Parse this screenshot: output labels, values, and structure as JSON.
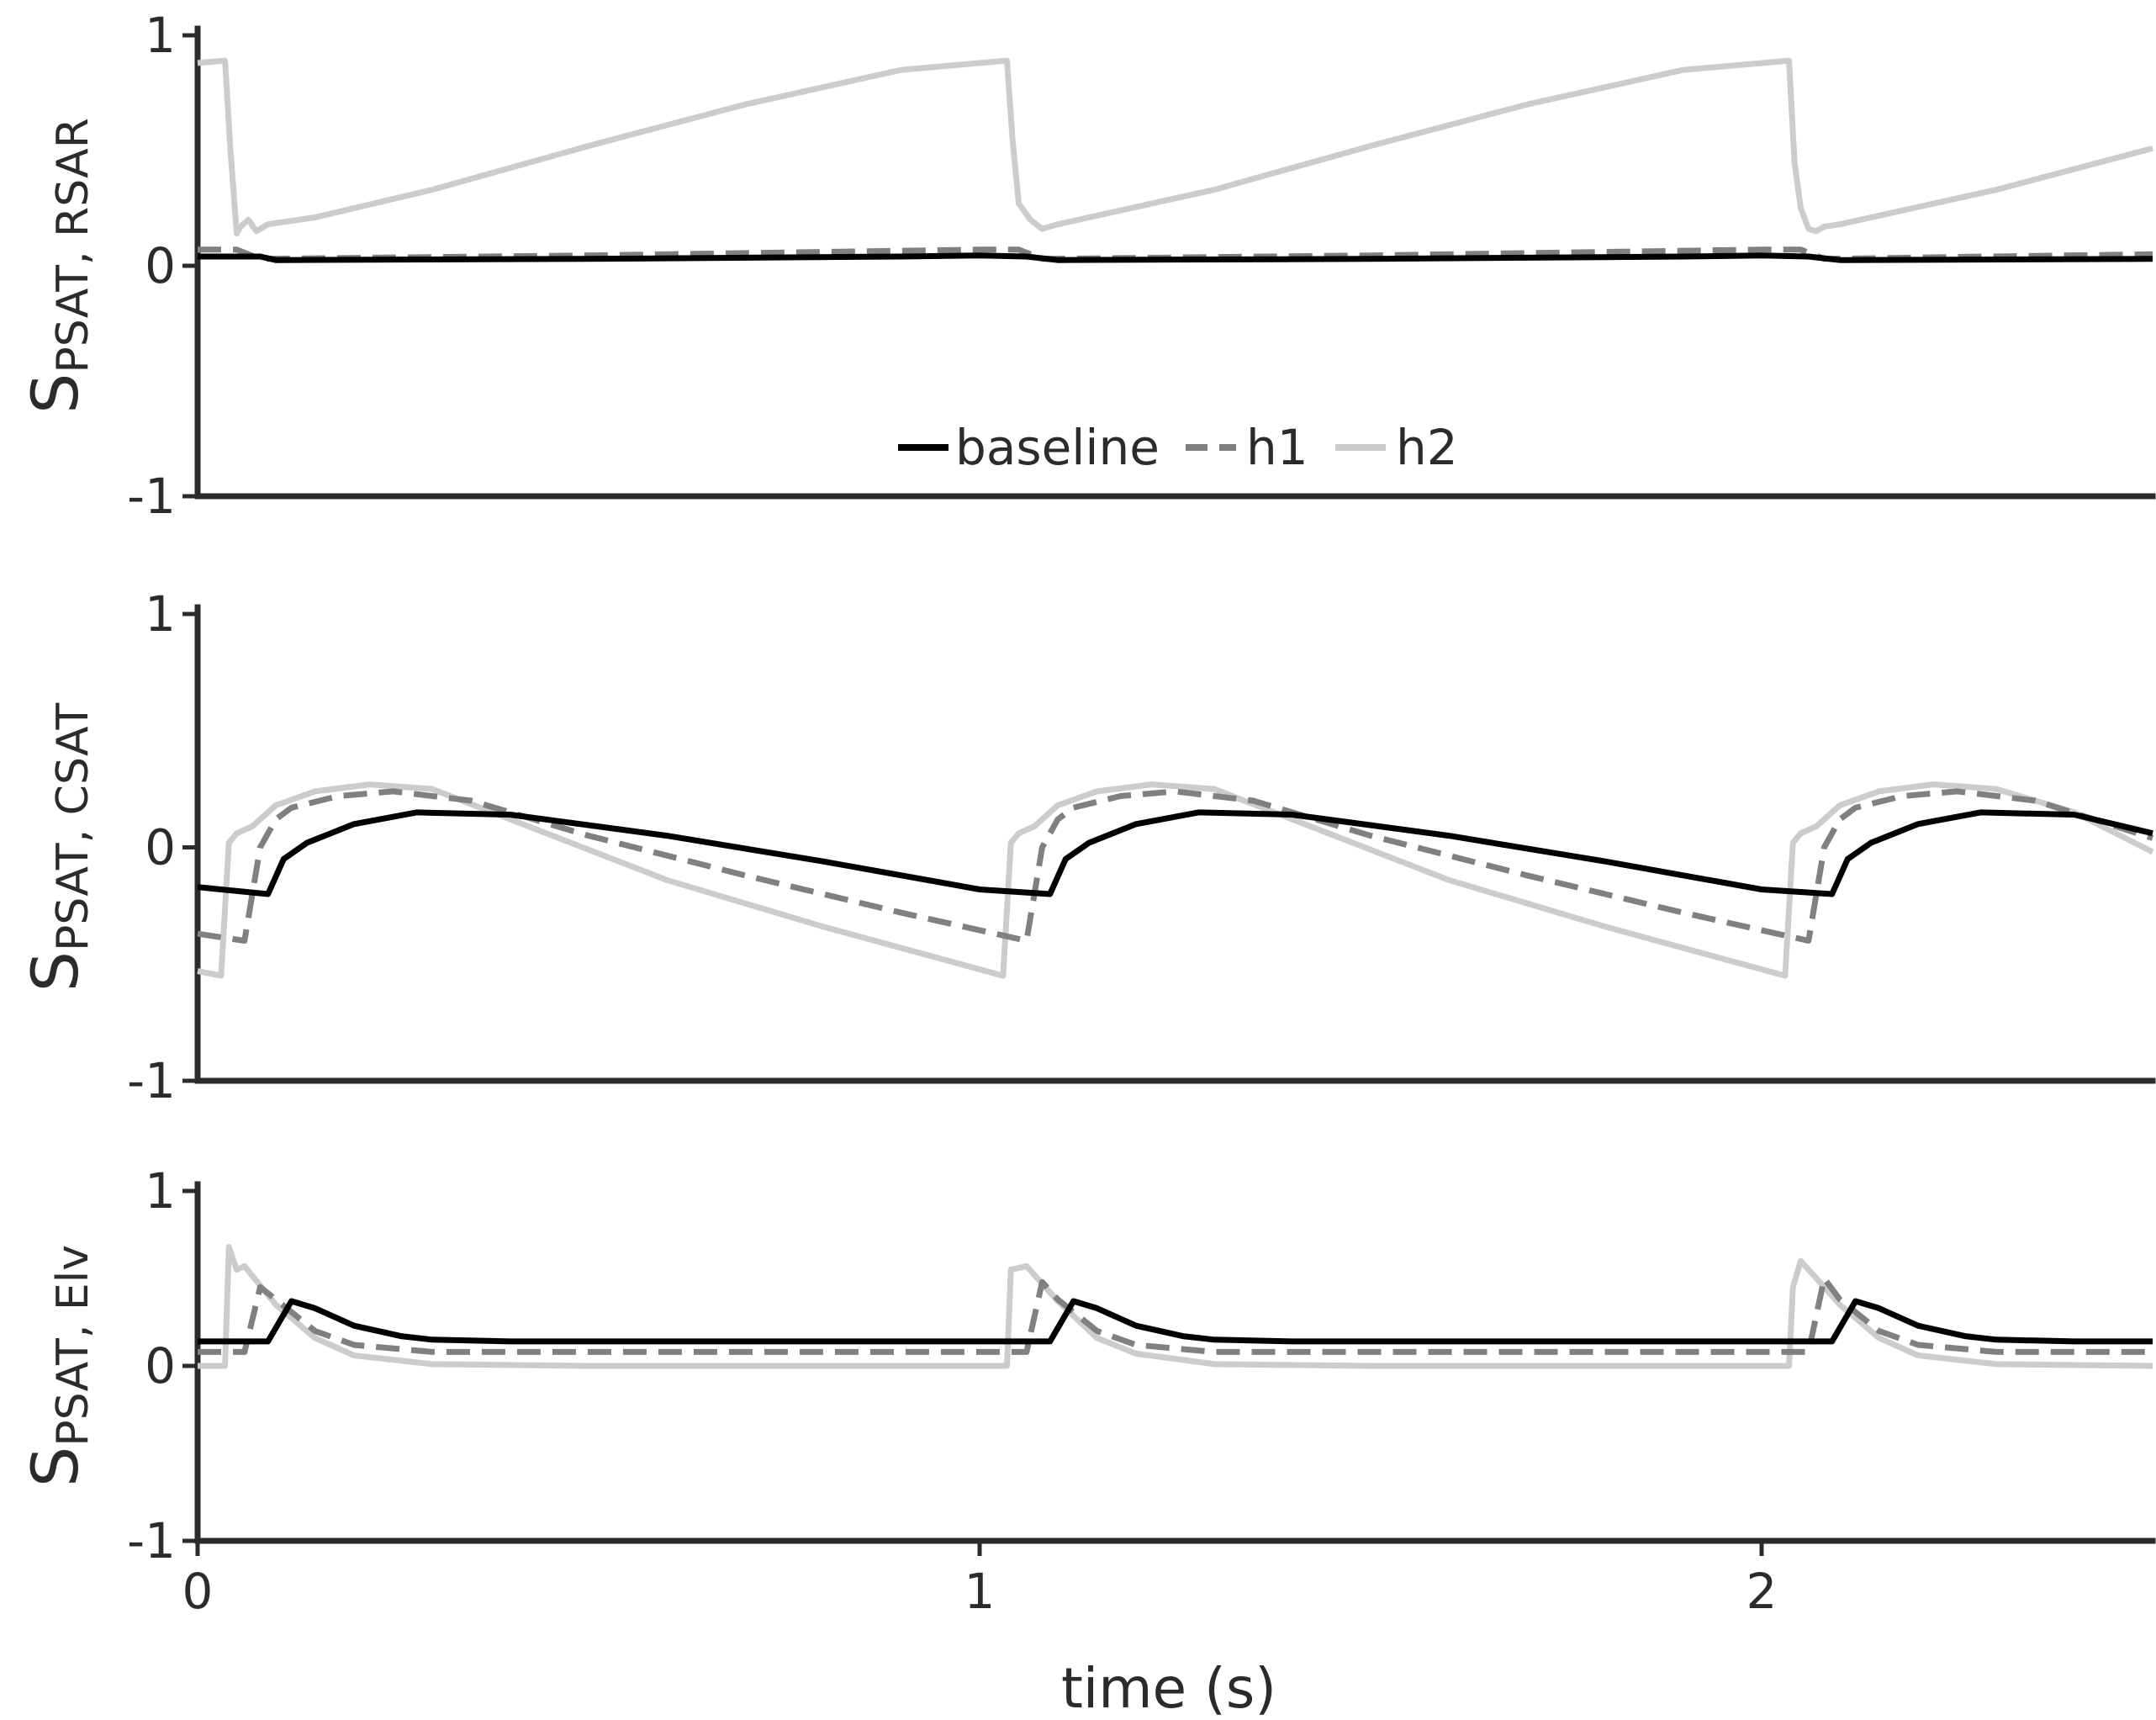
{
  "chart_data": [
    {
      "type": "line",
      "ylabel": {
        "main": "S",
        "sub": "PSAT, RSAR"
      },
      "ylim": [
        -1,
        1
      ],
      "yticks": [
        {
          "value": 1,
          "label": "1"
        },
        {
          "value": 0,
          "label": "0"
        },
        {
          "value": -1,
          "label": "-1"
        }
      ],
      "xlim": [
        0,
        2.5
      ],
      "grid": false,
      "legend": {
        "placement": "lower-center",
        "entries": [
          "baseline",
          "h1",
          "h2"
        ]
      },
      "series": [
        {
          "name": "baseline",
          "color": "#000000",
          "dash": "solid",
          "x": [
            0,
            0.08,
            0.1,
            0.5,
            0.9,
            1.0,
            1.06,
            1.1,
            1.5,
            1.9,
            2.0,
            2.06,
            2.1,
            2.5
          ],
          "y": [
            0.04,
            0.04,
            0.025,
            0.03,
            0.04,
            0.045,
            0.04,
            0.025,
            0.03,
            0.04,
            0.045,
            0.04,
            0.025,
            0.03
          ]
        },
        {
          "name": "h1",
          "color": "#808080",
          "dash": "dashed",
          "x": [
            0,
            0.05,
            0.08,
            0.5,
            1.0,
            1.05,
            1.08,
            1.5,
            2.0,
            2.05,
            2.08,
            2.5
          ],
          "y": [
            0.07,
            0.07,
            0.03,
            0.045,
            0.07,
            0.07,
            0.03,
            0.045,
            0.07,
            0.07,
            0.03,
            0.05
          ]
        },
        {
          "name": "h2",
          "color": "#cccccc",
          "dash": "solid",
          "x": [
            0,
            0.035,
            0.042,
            0.05,
            0.055,
            0.065,
            0.075,
            0.09,
            0.15,
            0.3,
            0.5,
            0.7,
            0.9,
            1.035,
            1.042,
            1.05,
            1.065,
            1.08,
            1.1,
            1.3,
            1.5,
            1.7,
            1.9,
            2.035,
            2.042,
            2.05,
            2.06,
            2.07,
            2.08,
            2.1,
            2.3,
            2.5
          ],
          "y": [
            0.88,
            0.89,
            0.5,
            0.14,
            0.17,
            0.2,
            0.15,
            0.18,
            0.21,
            0.33,
            0.52,
            0.7,
            0.85,
            0.89,
            0.55,
            0.27,
            0.2,
            0.16,
            0.18,
            0.33,
            0.52,
            0.7,
            0.85,
            0.89,
            0.45,
            0.25,
            0.16,
            0.15,
            0.17,
            0.18,
            0.33,
            0.51
          ]
        }
      ]
    },
    {
      "type": "line",
      "ylabel": {
        "main": "S",
        "sub": "PSAT, CSAT"
      },
      "ylim": [
        -1,
        1
      ],
      "yticks": [
        {
          "value": 1,
          "label": "1"
        },
        {
          "value": 0,
          "label": "0"
        },
        {
          "value": -1,
          "label": "-1"
        }
      ],
      "xlim": [
        0,
        2.5
      ],
      "grid": false,
      "series": [
        {
          "name": "baseline",
          "color": "#000000",
          "dash": "solid",
          "x": [
            0,
            0.09,
            0.11,
            0.14,
            0.2,
            0.28,
            0.4,
            0.6,
            0.8,
            1.0,
            1.09,
            1.11,
            1.14,
            1.2,
            1.28,
            1.4,
            1.6,
            1.8,
            2.0,
            2.09,
            2.11,
            2.14,
            2.2,
            2.28,
            2.4,
            2.5
          ],
          "y": [
            -0.17,
            -0.2,
            -0.05,
            0.02,
            0.1,
            0.15,
            0.14,
            0.05,
            -0.06,
            -0.18,
            -0.2,
            -0.05,
            0.02,
            0.1,
            0.15,
            0.14,
            0.05,
            -0.06,
            -0.18,
            -0.2,
            -0.05,
            0.02,
            0.1,
            0.15,
            0.14,
            0.06
          ]
        },
        {
          "name": "h1",
          "color": "#808080",
          "dash": "dashed",
          "x": [
            0,
            0.06,
            0.08,
            0.1,
            0.12,
            0.18,
            0.25,
            0.35,
            0.5,
            0.7,
            0.9,
            1.06,
            1.08,
            1.1,
            1.12,
            1.18,
            1.25,
            1.35,
            1.5,
            1.7,
            1.9,
            2.06,
            2.08,
            2.1,
            2.12,
            2.18,
            2.25,
            2.35,
            2.5
          ],
          "y": [
            -0.37,
            -0.4,
            0.0,
            0.12,
            0.17,
            0.22,
            0.24,
            0.2,
            0.05,
            -0.12,
            -0.28,
            -0.4,
            0.0,
            0.12,
            0.17,
            0.22,
            0.24,
            0.2,
            0.05,
            -0.12,
            -0.28,
            -0.4,
            0.0,
            0.12,
            0.17,
            0.22,
            0.24,
            0.2,
            0.04
          ]
        },
        {
          "name": "h2",
          "color": "#cccccc",
          "dash": "solid",
          "x": [
            0,
            0.03,
            0.04,
            0.05,
            0.07,
            0.1,
            0.15,
            0.22,
            0.3,
            0.4,
            0.6,
            0.8,
            1.03,
            1.04,
            1.05,
            1.07,
            1.1,
            1.15,
            1.22,
            1.3,
            1.4,
            1.6,
            1.8,
            2.03,
            2.04,
            2.05,
            2.07,
            2.1,
            2.15,
            2.22,
            2.3,
            2.4,
            2.5
          ],
          "y": [
            -0.53,
            -0.55,
            0.02,
            0.06,
            0.09,
            0.18,
            0.24,
            0.27,
            0.25,
            0.12,
            -0.14,
            -0.34,
            -0.55,
            0.02,
            0.06,
            0.09,
            0.18,
            0.24,
            0.27,
            0.25,
            0.12,
            -0.14,
            -0.34,
            -0.55,
            0.02,
            0.06,
            0.09,
            0.18,
            0.24,
            0.27,
            0.25,
            0.15,
            -0.02
          ]
        }
      ]
    },
    {
      "type": "line",
      "ylabel": {
        "main": "S",
        "sub": "PSAT, Elv"
      },
      "ylim": [
        -1,
        1
      ],
      "yticks": [
        {
          "value": 1,
          "label": "1"
        },
        {
          "value": 0,
          "label": "0"
        },
        {
          "value": -1,
          "label": "-1"
        }
      ],
      "xlim": [
        0,
        2.5
      ],
      "xticks": [
        {
          "value": 0,
          "label": "0"
        },
        {
          "value": 1,
          "label": "1"
        },
        {
          "value": 2,
          "label": "2"
        }
      ],
      "xlabel": "time (s)",
      "grid": false,
      "series": [
        {
          "name": "baseline",
          "color": "#000000",
          "dash": "solid",
          "x": [
            0,
            0.09,
            0.12,
            0.15,
            0.2,
            0.26,
            0.3,
            0.4,
            1.0,
            1.09,
            1.12,
            1.15,
            1.2,
            1.26,
            1.3,
            1.4,
            2.0,
            2.09,
            2.12,
            2.15,
            2.2,
            2.26,
            2.3,
            2.4,
            2.5
          ],
          "y": [
            0.14,
            0.14,
            0.37,
            0.33,
            0.23,
            0.17,
            0.15,
            0.14,
            0.14,
            0.14,
            0.37,
            0.33,
            0.23,
            0.17,
            0.15,
            0.14,
            0.14,
            0.14,
            0.37,
            0.33,
            0.23,
            0.17,
            0.15,
            0.14,
            0.14
          ]
        },
        {
          "name": "h1",
          "color": "#808080",
          "dash": "dashed",
          "x": [
            0,
            0.06,
            0.08,
            0.1,
            0.15,
            0.2,
            0.3,
            0.5,
            1.06,
            1.08,
            1.1,
            1.15,
            1.2,
            1.3,
            1.5,
            2.06,
            2.08,
            2.1,
            2.15,
            2.2,
            2.3,
            2.5
          ],
          "y": [
            0.08,
            0.08,
            0.45,
            0.38,
            0.2,
            0.12,
            0.08,
            0.08,
            0.08,
            0.48,
            0.38,
            0.2,
            0.12,
            0.08,
            0.08,
            0.08,
            0.5,
            0.38,
            0.2,
            0.12,
            0.08,
            0.08
          ]
        },
        {
          "name": "h2",
          "color": "#cccccc",
          "dash": "solid",
          "x": [
            0,
            0.035,
            0.04,
            0.05,
            0.06,
            0.1,
            0.15,
            0.2,
            0.3,
            0.5,
            1.035,
            1.04,
            1.06,
            1.1,
            1.15,
            1.2,
            1.3,
            1.5,
            2.035,
            2.04,
            2.05,
            2.06,
            2.1,
            2.15,
            2.2,
            2.3,
            2.5
          ],
          "y": [
            0.0,
            0.0,
            0.68,
            0.55,
            0.57,
            0.35,
            0.16,
            0.06,
            0.01,
            0.0,
            0.0,
            0.55,
            0.57,
            0.37,
            0.16,
            0.07,
            0.01,
            0.0,
            0.0,
            0.45,
            0.6,
            0.55,
            0.35,
            0.16,
            0.06,
            0.01,
            0.0
          ]
        }
      ]
    }
  ]
}
